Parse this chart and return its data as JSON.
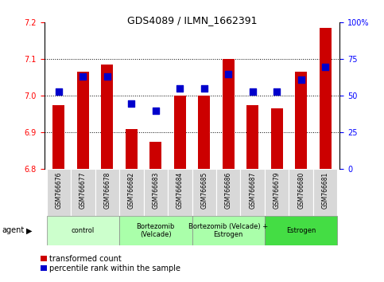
{
  "title": "GDS4089 / ILMN_1662391",
  "samples": [
    "GSM766676",
    "GSM766677",
    "GSM766678",
    "GSM766682",
    "GSM766683",
    "GSM766684",
    "GSM766685",
    "GSM766686",
    "GSM766687",
    "GSM766679",
    "GSM766680",
    "GSM766681"
  ],
  "red_values": [
    6.975,
    7.065,
    7.085,
    6.91,
    6.875,
    7.0,
    7.0,
    7.1,
    6.975,
    6.965,
    7.065,
    7.185
  ],
  "blue_values": [
    53,
    63,
    63,
    45,
    40,
    55,
    55,
    65,
    53,
    53,
    61,
    70
  ],
  "ylim_left": [
    6.8,
    7.2
  ],
  "ylim_right": [
    0,
    100
  ],
  "yticks_left": [
    6.8,
    6.9,
    7.0,
    7.1,
    7.2
  ],
  "yticks_right": [
    0,
    25,
    50,
    75,
    100
  ],
  "ytick_labels_right": [
    "0",
    "25",
    "50",
    "75",
    "100%"
  ],
  "grid_lines": [
    6.9,
    7.0,
    7.1
  ],
  "groups": [
    {
      "label": "control",
      "start": 0,
      "end": 3,
      "color": "#ccffcc"
    },
    {
      "label": "Bortezomib\n(Velcade)",
      "start": 3,
      "end": 6,
      "color": "#aaffaa"
    },
    {
      "label": "Bortezomib (Velcade) +\nEstrogen",
      "start": 6,
      "end": 9,
      "color": "#aaffaa"
    },
    {
      "label": "Estrogen",
      "start": 9,
      "end": 12,
      "color": "#44dd44"
    }
  ],
  "bar_color": "#cc0000",
  "dot_color": "#0000cc",
  "agent_label": "agent",
  "legend1": "transformed count",
  "legend2": "percentile rank within the sample",
  "bar_width": 0.5,
  "dot_size": 30,
  "title_fontsize": 9,
  "tick_fontsize": 7,
  "label_fontsize": 5.5,
  "group_fontsize": 6,
  "legend_fontsize": 7
}
